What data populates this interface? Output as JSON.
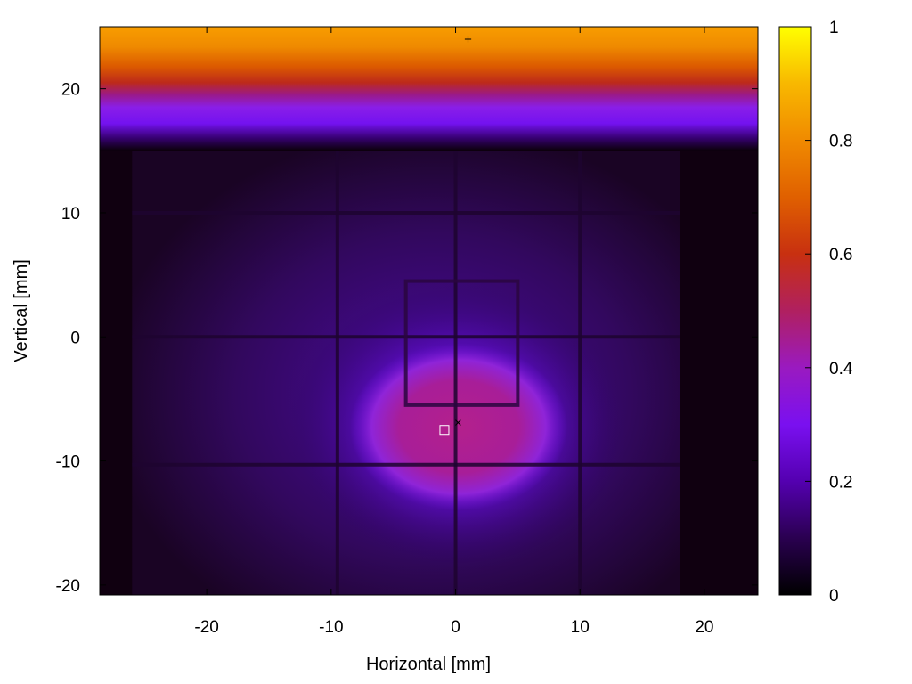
{
  "chart_data": {
    "type": "heatmap",
    "title": "",
    "xlabel": "Horizontal [mm]",
    "ylabel": "Vertical [mm]",
    "xlim": [
      -28.6,
      24.3
    ],
    "ylim": [
      -20.8,
      25
    ],
    "xticks": [
      -20,
      -10,
      0,
      10,
      20
    ],
    "yticks": [
      -20,
      -10,
      0,
      10,
      20
    ],
    "colorbar": {
      "range": [
        0,
        1
      ],
      "ticks": [
        0,
        0.2,
        0.4,
        0.6,
        0.8,
        1
      ],
      "tick_labels": [
        "0",
        "0.2",
        "0.4",
        "0.6",
        "0.8",
        "1"
      ],
      "colormap": [
        "#000000",
        "#2a0050",
        "#6a00c8",
        "#8b1fe0",
        "#a020a0",
        "#c02040",
        "#d84000",
        "#f08000",
        "#f8b000",
        "#ffff00"
      ]
    },
    "regions": [
      {
        "name": "top bright band",
        "x": [
          -28.6,
          24.3
        ],
        "y": [
          20,
          25
        ],
        "value": 0.78
      },
      {
        "name": "upper transition band",
        "x": [
          -28.6,
          24.3
        ],
        "y": [
          16.5,
          20
        ],
        "value": 0.3
      },
      {
        "name": "central hot region",
        "x": [
          -8.5,
          9
        ],
        "y": [
          -14,
          -0.5
        ],
        "value": 0.42
      },
      {
        "name": "background field",
        "x": [
          -26,
          18
        ],
        "y": [
          -20.8,
          15
        ],
        "value": 0.12
      }
    ],
    "grid_lines_x": [
      -9.5,
      0,
      10
    ],
    "grid_lines_y": [
      10,
      0,
      -10.3
    ],
    "inner_box": {
      "x": [
        -4,
        5
      ],
      "y": [
        -5.5,
        4.5
      ]
    },
    "markers": [
      {
        "symbol": "+",
        "x": 1,
        "y": 24
      },
      {
        "symbol": "×",
        "x": 0.2,
        "y": -6.9
      },
      {
        "symbol": "□",
        "x": -0.9,
        "y": -7.5
      }
    ]
  }
}
